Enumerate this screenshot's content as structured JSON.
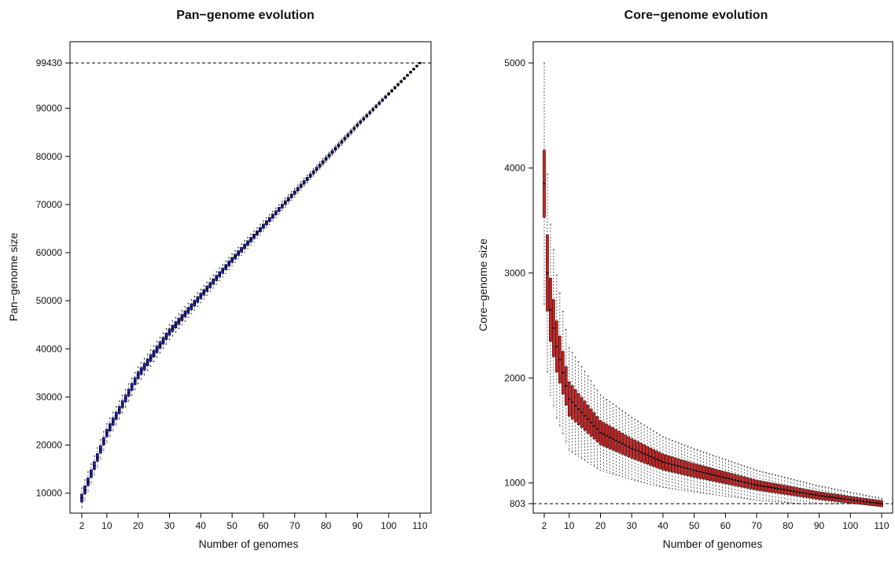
{
  "chart_data": [
    {
      "type": "boxplot",
      "title": "Pan−genome evolution",
      "xlabel": "Number of genomes",
      "ylabel": "Pan−genome size",
      "box_color": "#1f1fb4",
      "xlim": [
        2,
        110
      ],
      "ylim": [
        7000,
        99430
      ],
      "xticks": [
        2,
        10,
        20,
        30,
        40,
        50,
        60,
        70,
        80,
        90,
        100,
        110
      ],
      "yticks": [
        10000,
        20000,
        30000,
        40000,
        50000,
        60000,
        70000,
        80000,
        90000,
        99430
      ],
      "hline": 99430,
      "median_at": {
        "2": 9000,
        "10": 22500,
        "20": 34500,
        "30": 43500,
        "40": 51000,
        "50": 58500,
        "60": 65500,
        "70": 72500,
        "80": 79500,
        "90": 86500,
        "100": 93000,
        "110": 99430
      }
    },
    {
      "type": "boxplot",
      "title": "Core−genome evolution",
      "xlabel": "Number of genomes",
      "ylabel": "Core−genome size",
      "box_color": "#d42020",
      "xlim": [
        2,
        110
      ],
      "ylim": [
        803,
        5000
      ],
      "xticks": [
        2,
        10,
        20,
        30,
        40,
        50,
        60,
        70,
        80,
        90,
        100,
        110
      ],
      "yticks": [
        803,
        1000,
        2000,
        3000,
        4000,
        5000
      ],
      "hline": 803,
      "median_at": {
        "2": 3850,
        "3": 3000,
        "4": 2650,
        "6": 2300,
        "10": 1800,
        "20": 1480,
        "30": 1330,
        "40": 1200,
        "50": 1120,
        "60": 1050,
        "70": 980,
        "80": 930,
        "90": 880,
        "100": 840,
        "110": 803
      }
    }
  ]
}
